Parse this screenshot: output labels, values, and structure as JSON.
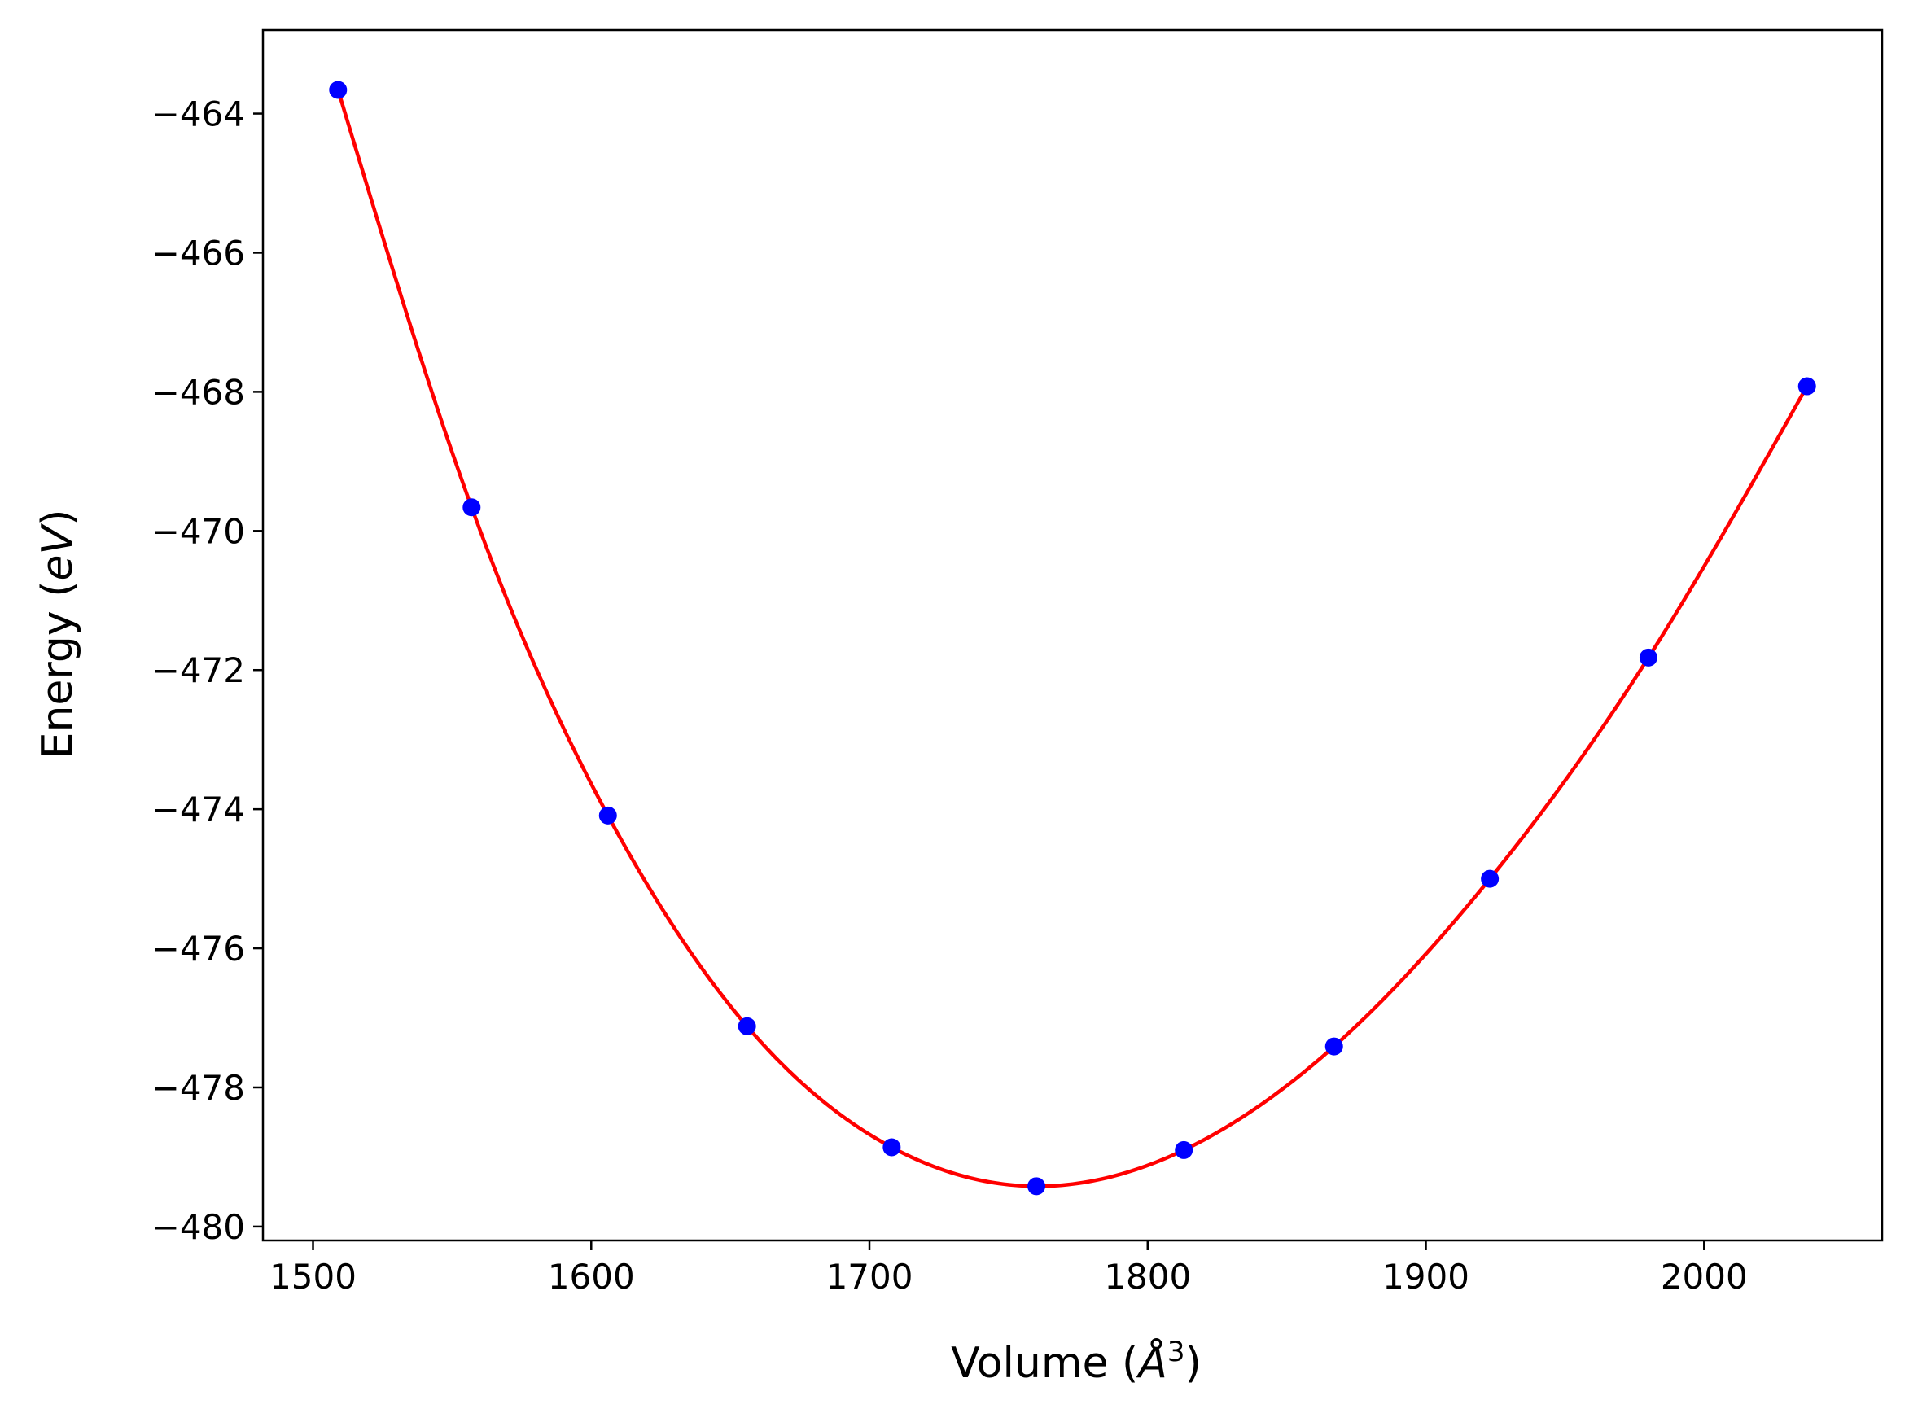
{
  "chart_data": {
    "type": "scatter",
    "title": "",
    "xlabel_prefix": "Volume (",
    "xlabel_unit": "Å",
    "xlabel_sup": "3",
    "xlabel_suffix": ")",
    "ylabel_prefix": "Energy (",
    "ylabel_unit": "eV",
    "ylabel_suffix": ")",
    "xlim": [
      1482,
      2064
    ],
    "ylim": [
      -480.2,
      -462.8
    ],
    "xticks": [
      1500,
      1600,
      1700,
      1800,
      1900,
      2000
    ],
    "yticks": [
      -464,
      -466,
      -468,
      -470,
      -472,
      -474,
      -476,
      -478,
      -480
    ],
    "xtick_labels": [
      "1500",
      "1600",
      "1700",
      "1800",
      "1900",
      "2000"
    ],
    "ytick_labels": [
      "−464",
      "−466",
      "−468",
      "−470",
      "−472",
      "−474",
      "−476",
      "−478",
      "−480"
    ],
    "grid": false,
    "series": [
      {
        "kind": "points",
        "color": "#0000ff",
        "x": [
          1509,
          1557,
          1606,
          1656,
          1708,
          1760,
          1813,
          1867,
          1923,
          1980,
          2037
        ],
        "y": [
          -463.66,
          -469.66,
          -474.09,
          -477.12,
          -478.86,
          -479.42,
          -478.9,
          -477.41,
          -475.0,
          -471.82,
          -467.92
        ]
      },
      {
        "kind": "fit_line",
        "color": "#ff0000",
        "x": [
          1509,
          1557,
          1606,
          1656,
          1708,
          1760,
          1813,
          1867,
          1923,
          1980,
          2037
        ],
        "y": [
          -463.66,
          -469.66,
          -474.09,
          -477.12,
          -478.86,
          -479.42,
          -478.9,
          -477.41,
          -475.0,
          -471.82,
          -467.92
        ]
      }
    ]
  }
}
